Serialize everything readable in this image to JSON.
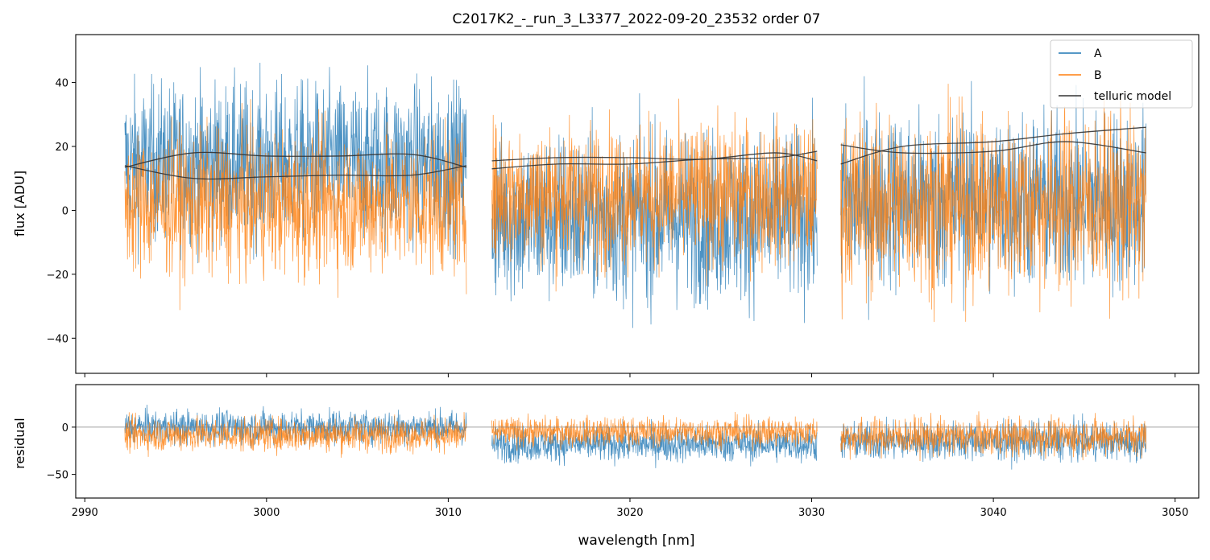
{
  "figure": {
    "title": "C2017K2_-_run_3_L3377_2022-09-20_23532  order 07",
    "xlabel": "wavelength [nm]"
  },
  "colors": {
    "A": "#1f77b4",
    "B": "#ff7f0e",
    "telluric": "#333333",
    "zero_line": "#808080"
  },
  "chart_data": [
    {
      "type": "line",
      "panel": "flux",
      "title": "C2017K2_-_run_3_L3377_2022-09-20_23532  order 07",
      "xlabel": "",
      "ylabel": "flux [ADU]",
      "xlim": [
        2989.5,
        3051.3
      ],
      "ylim": [
        -51,
        55
      ],
      "x_ticks": [
        2990,
        3000,
        3010,
        3020,
        3030,
        3040,
        3050
      ],
      "y_ticks": [
        -40,
        -20,
        0,
        20,
        40
      ],
      "y_tick_labels": [
        "−40",
        "−20",
        "0",
        "20",
        "40"
      ],
      "legend": {
        "placement": "top-right",
        "entries": [
          "A",
          "B",
          "telluric model"
        ]
      },
      "grid": false,
      "segments": [
        {
          "x_range": [
            2992.2,
            3011.0
          ],
          "A_mean": 15,
          "A_spread": 22,
          "B_mean": 2,
          "B_spread": 20
        },
        {
          "x_range": [
            3012.4,
            3030.3
          ],
          "A_mean": -2,
          "A_spread": 24,
          "B_mean": 5,
          "B_spread": 20
        },
        {
          "x_range": [
            3031.6,
            3048.4
          ],
          "A_mean": 3,
          "A_spread": 25,
          "B_mean": 2,
          "B_spread": 25
        }
      ],
      "series": [
        {
          "name": "telluric model",
          "segment": 1,
          "curve": "upper",
          "x": [
            2992.2,
            2996,
            3000,
            3004,
            3008,
            3011.0
          ],
          "y": [
            13.5,
            18.0,
            17.0,
            17.0,
            17.5,
            13.5
          ]
        },
        {
          "name": "telluric model",
          "segment": 1,
          "curve": "lower",
          "x": [
            2992.2,
            2996,
            3000,
            3004,
            3008,
            3011.0
          ],
          "y": [
            14.0,
            10.0,
            10.5,
            11.0,
            11.0,
            14.0
          ]
        },
        {
          "name": "telluric model",
          "segment": 2,
          "curve": "upper",
          "x": [
            3012.4,
            3016,
            3020,
            3024,
            3028,
            3030.3
          ],
          "y": [
            15.5,
            16.5,
            16.5,
            16.0,
            18.0,
            15.5
          ]
        },
        {
          "name": "telluric model",
          "segment": 2,
          "curve": "lower",
          "x": [
            3012.4,
            3016,
            3020,
            3024,
            3028,
            3030.3
          ],
          "y": [
            13.0,
            14.5,
            14.5,
            16.0,
            16.5,
            18.5
          ]
        },
        {
          "name": "telluric model",
          "segment": 3,
          "curve": "upper",
          "x": [
            3031.6,
            3035,
            3040,
            3044,
            3048.4
          ],
          "y": [
            20.5,
            18.0,
            18.5,
            21.5,
            18.0
          ]
        },
        {
          "name": "telluric model",
          "segment": 3,
          "curve": "lower",
          "x": [
            3031.6,
            3035,
            3040,
            3044,
            3048.4
          ],
          "y": [
            14.5,
            20.0,
            21.5,
            24.0,
            26.0
          ]
        }
      ]
    },
    {
      "type": "line",
      "panel": "residual",
      "xlabel": "wavelength [nm]",
      "ylabel": "residual",
      "xlim": [
        2989.5,
        3051.3
      ],
      "ylim": [
        -75,
        45
      ],
      "x_ticks": [
        2990,
        3000,
        3010,
        3020,
        3030,
        3040,
        3050
      ],
      "x_tick_labels": [
        "2990",
        "3000",
        "3010",
        "3020",
        "3030",
        "3040",
        "3050"
      ],
      "y_ticks": [
        -50,
        0
      ],
      "y_tick_labels": [
        "−50",
        "0"
      ],
      "zero_line": 0,
      "grid": false,
      "segments": [
        {
          "x_range": [
            2992.2,
            3011.0
          ],
          "A_mean": 0,
          "A_spread": 16,
          "B_mean": -8,
          "B_spread": 16
        },
        {
          "x_range": [
            3012.4,
            3030.3
          ],
          "A_mean": -18,
          "A_spread": 17,
          "B_mean": -5,
          "B_spread": 14
        },
        {
          "x_range": [
            3031.6,
            3048.4
          ],
          "A_mean": -15,
          "A_spread": 18,
          "B_mean": -10,
          "B_spread": 18
        }
      ]
    }
  ]
}
